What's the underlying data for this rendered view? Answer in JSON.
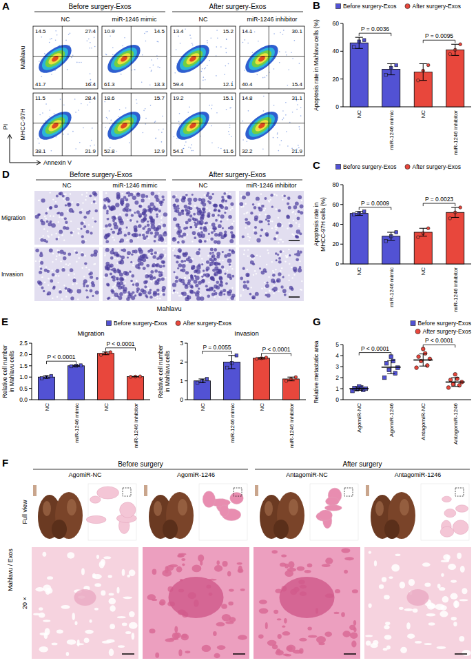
{
  "figure": {
    "panel_a": {
      "label": "A",
      "groups": [
        "Before surgery-Exos",
        "After surgery-Exos"
      ],
      "columns": [
        "NC",
        "miR-1246 mimic",
        "NC",
        "miR-1246 inhibitor"
      ],
      "rows": [
        {
          "name": "Mahlavu",
          "quadrants": [
            [
              14.5,
              27.4,
              41.7,
              16.4
            ],
            [
              10.9,
              14.5,
              61.3,
              13.3
            ],
            [
              13.4,
              15.2,
              59.4,
              12.1
            ],
            [
              14.1,
              30.1,
              40.4,
              15.4
            ]
          ]
        },
        {
          "name": "MHCC-97H",
          "quadrants": [
            [
              11.5,
              28.4,
              38.1,
              21.9
            ],
            [
              18.6,
              15.7,
              52.8,
              12.9
            ],
            [
              19.2,
              15.1,
              54.1,
              11.6
            ],
            [
              14.8,
              31.1,
              32.2,
              21.9
            ]
          ]
        }
      ],
      "x_label": "Annexin V",
      "y_label": "PI"
    },
    "panel_d": {
      "label": "D",
      "groups": [
        "Before surgery-Exos",
        "After surgery-Exos"
      ],
      "columns": [
        "NC",
        "miR-1246 mimic",
        "NC",
        "miR-1246 inhibitor"
      ],
      "rows": [
        "Migration",
        "Invasion"
      ],
      "cell_line": "Mahlavu"
    },
    "panel_f": {
      "label": "F",
      "groups": [
        "Before surgery",
        "After surgery"
      ],
      "columns": [
        "AgomiR-NC",
        "AgomiR-1246",
        "AntagomiR-NC",
        "AntagomiR-1246"
      ],
      "rows": [
        "Full view",
        "20 ×"
      ],
      "side_label": "Mahlavu / Exos"
    }
  },
  "chart_data": [
    {
      "panel": "B",
      "type": "bar",
      "y_label": "Apoptosis rate in Mahlavu cells (%)",
      "categories": [
        "NC",
        "miR-1246 mimic",
        "NC",
        "miR-1246 inhibitor"
      ],
      "series": [
        {
          "name": "Before surgery-Exos",
          "color": "#5252d4",
          "marker": "square",
          "values": [
            46,
            27,
            null,
            null
          ],
          "errors": [
            4,
            4,
            null,
            null
          ],
          "points": [
            [
              43,
              47,
              48
            ],
            [
              23,
              28,
              30
            ],
            null,
            null
          ]
        },
        {
          "name": "After surgery-Exos",
          "color": "#e8473c",
          "marker": "circle",
          "values": [
            null,
            null,
            25,
            41
          ],
          "errors": [
            null,
            null,
            6,
            4
          ],
          "points": [
            null,
            null,
            [
              19,
              26,
              30
            ],
            [
              38,
              41,
              45
            ]
          ]
        }
      ],
      "ylim": [
        0,
        60
      ],
      "yticks": [
        0,
        20,
        40,
        60
      ],
      "legend": "top",
      "annotations": [
        {
          "text": "P = 0.0036",
          "from": 0,
          "to": 1
        },
        {
          "text": "P = 0.0095",
          "from": 2,
          "to": 3
        }
      ]
    },
    {
      "panel": "C",
      "type": "bar",
      "y_label": "Apoptosis rate in MHCC-97H cells (%)",
      "categories": [
        "NC",
        "miR-1246 mimic",
        "NC",
        "miR-1246 inhibitor"
      ],
      "series": [
        {
          "name": "Before surgery-Exos",
          "color": "#5252d4",
          "marker": "square",
          "values": [
            51,
            28,
            null,
            null
          ],
          "errors": [
            2,
            4,
            null,
            null
          ],
          "points": [
            [
              50,
              51,
              53
            ],
            [
              23,
              28,
              32
            ],
            null,
            null
          ]
        },
        {
          "name": "After surgery-Exos",
          "color": "#e8473c",
          "marker": "circle",
          "values": [
            null,
            null,
            32,
            52
          ],
          "errors": [
            null,
            null,
            4,
            5
          ],
          "points": [
            null,
            null,
            [
              27,
              31,
              36
            ],
            [
              46,
              52,
              57
            ]
          ]
        }
      ],
      "ylim": [
        0,
        80
      ],
      "yticks": [
        0,
        20,
        40,
        60,
        80
      ],
      "legend": "top",
      "annotations": [
        {
          "text": "P = 0.0009",
          "from": 0,
          "to": 1
        },
        {
          "text": "P = 0.0023",
          "from": 2,
          "to": 3
        }
      ]
    },
    {
      "panel": "E",
      "type": "bar",
      "title": "Migration",
      "y_label": "Relative cell number in Mahlavu cells",
      "categories": [
        "NC",
        "miR-1246 mimic",
        "NC",
        "miR-1246 inhibitor"
      ],
      "series": [
        {
          "name": "Before surgery-Exos",
          "color": "#5252d4",
          "marker": "square",
          "values": [
            1.0,
            1.5,
            null,
            null
          ],
          "errors": [
            0.05,
            0.02,
            null,
            null
          ],
          "points": [
            [
              0.95,
              1.0,
              1.05
            ],
            [
              1.48,
              1.5,
              1.52
            ],
            null,
            null
          ]
        },
        {
          "name": "After surgery-Exos",
          "color": "#e8473c",
          "marker": "circle",
          "values": [
            null,
            null,
            2.05,
            1.02
          ],
          "errors": [
            null,
            null,
            0.06,
            0.01
          ],
          "points": [
            null,
            null,
            [
              1.98,
              2.06,
              2.1
            ],
            [
              1.01,
              1.02,
              1.03
            ]
          ]
        }
      ],
      "ylim": [
        0,
        2.5
      ],
      "yticks": [
        {
          "value": 0,
          "label": "0.0"
        },
        {
          "value": 0.5,
          "label": "0.5"
        },
        {
          "value": 1,
          "label": "1.0"
        },
        {
          "value": 1.5,
          "label": "1.5"
        },
        {
          "value": 2,
          "label": "2.0"
        },
        {
          "value": 2.5,
          "label": "2.5"
        }
      ],
      "legend": "top",
      "annotations": [
        {
          "text": "P < 0.0001",
          "from": 0,
          "to": 1
        },
        {
          "text": "P < 0.0001",
          "from": 2,
          "to": 3
        }
      ]
    },
    {
      "type": "bar",
      "title": "Invasion",
      "y_label": "Relative cell number in Mahlavu cells",
      "categories": [
        "NC",
        "miR-1246 mimic",
        "NC",
        "miR-1246 inhibitor"
      ],
      "series": [
        {
          "color": "#5252d4",
          "marker": "square",
          "values": [
            1.0,
            2.0,
            null,
            null
          ],
          "errors": [
            0.1,
            0.35,
            null,
            null
          ],
          "points": [
            [
              0.9,
              1.0,
              1.1
            ],
            [
              1.7,
              1.95,
              2.35
            ],
            null,
            null
          ]
        },
        {
          "color": "#e8473c",
          "marker": "circle",
          "values": [
            null,
            null,
            2.2,
            1.1
          ],
          "errors": [
            null,
            null,
            0.04,
            0.1
          ],
          "points": [
            null,
            null,
            [
              2.17,
              2.2,
              2.24
            ],
            [
              1.0,
              1.1,
              1.2
            ]
          ]
        }
      ],
      "ylim": [
        0,
        3
      ],
      "yticks": [
        0,
        1,
        2,
        3
      ],
      "annotations": [
        {
          "text": "P = 0.0055",
          "from": 0,
          "to": 1
        },
        {
          "text": "P < 0.0001",
          "from": 2,
          "to": 3
        }
      ]
    },
    {
      "panel": "G",
      "type": "dot",
      "y_label": "Relative metastatic area",
      "categories": [
        "AgomiR-NC",
        "AgomiR-1246",
        "AntagomiR-NC",
        "AntagomiR-1246"
      ],
      "series": [
        {
          "name": "Before surgery-Exos",
          "color": "#5252d4",
          "marker": "square",
          "values": [
            1.0,
            2.95,
            null,
            null
          ],
          "errors": [
            0.15,
            0.6,
            null,
            null
          ],
          "points": [
            [
              0.8,
              0.9,
              0.95,
              1.0,
              1.05,
              1.1,
              1.2
            ],
            [
              2.0,
              2.4,
              2.7,
              2.9,
              3.3,
              3.5,
              3.9
            ],
            null,
            null
          ]
        },
        {
          "name": "After surgery-Exos",
          "color": "#e8473c",
          "marker": "circle",
          "values": [
            null,
            null,
            3.6,
            1.6
          ],
          "errors": [
            null,
            null,
            0.55,
            0.4
          ],
          "points": [
            null,
            null,
            [
              2.9,
              3.1,
              3.5,
              3.7,
              3.9,
              4.2,
              4.6
            ],
            [
              1.1,
              1.3,
              1.4,
              1.6,
              1.8,
              1.9,
              2.3
            ]
          ]
        }
      ],
      "ylim": [
        0,
        5
      ],
      "yticks": [
        0,
        1,
        2,
        3,
        4,
        5
      ],
      "legend": "top-right",
      "annotations": [
        {
          "text": "P < 0.0001",
          "from": 0,
          "to": 1
        },
        {
          "text": "P < 0.0001",
          "from": 2,
          "to": 3
        }
      ]
    }
  ]
}
